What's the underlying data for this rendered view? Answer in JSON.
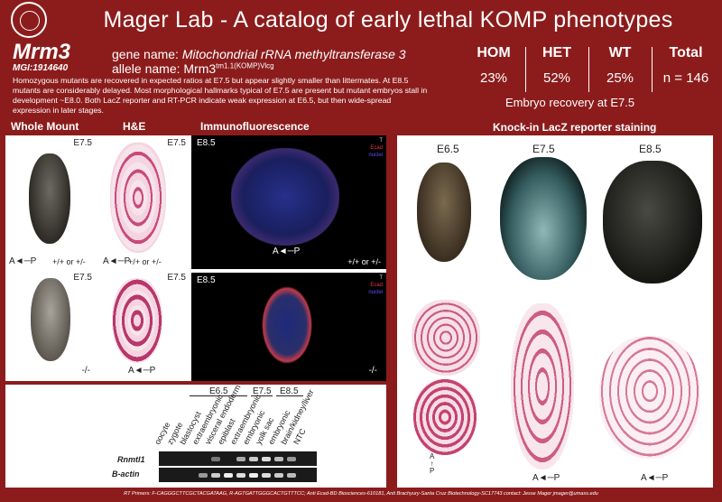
{
  "header": {
    "title": "Mager Lab - A catalog of early lethal KOMP phenotypes"
  },
  "gene": {
    "symbol": "Mrm3",
    "mgi": "MGI:1914640",
    "gene_name_label": "gene name:",
    "gene_name": "Mitochondrial rRNA methyltransferase 3",
    "allele_name_label": "allele name:",
    "allele_base": "Mrm3",
    "allele_sup": "tm1.1(KOMP)Vlcg"
  },
  "description": "Homozygous mutants are recovered in expected ratios at E7.5 but appear slightly smaller than littermates. At E8.5 mutants are considerably delayed. Most morphological hallmarks typical of E7.5 are present but mutant embryos stall in development ~E8.0. Both LacZ reporter and RT-PCR indicate weak expression at E6.5, but then wide-spread expression in later stages.",
  "stats": {
    "hom_label": "HOM",
    "hom_value": "23%",
    "het_label": "HET",
    "het_value": "52%",
    "wt_label": "WT",
    "wt_value": "25%",
    "total_label": "Total",
    "total_value": "n = 146",
    "recovery_caption": "Embryo recovery at E7.5"
  },
  "sections": {
    "whole_mount": "Whole Mount",
    "he": "H&E",
    "immuno": "Immunofluorescence",
    "lacz": "Knock-in LacZ reporter staining"
  },
  "panels": {
    "wm_top_stage": "E7.5",
    "wm_top_geno": "+/+ or +/-",
    "wm_bottom_stage": "E7.5",
    "wm_bottom_geno": "-/-",
    "he_top_stage": "E7.5",
    "he_top_geno": "+/+ or +/-",
    "he_bottom_stage": "E7.5",
    "if_top_stage": "E8.5",
    "if_top_geno": "+/+ or +/-",
    "if_bottom_stage": "E8.5",
    "if_bottom_geno": "-/-",
    "axis": "A◄─P",
    "if_legend": [
      "T",
      "Ecad",
      "nuclei"
    ],
    "lacz_stages": [
      "E6.5",
      "E7.5",
      "E8.5"
    ],
    "lacz_axis": "A◄─P",
    "lacz_vertical_axis": [
      "A",
      "P"
    ]
  },
  "gel": {
    "stage_groups": [
      "E6.5",
      "E7.5",
      "E8.5"
    ],
    "lanes": [
      "oocyte",
      "zygote",
      "blastocyst",
      "extraembryonic",
      "visceral endoderm",
      "epiblast",
      "extraembryonic",
      "embryonic",
      "yolk sac",
      "embryonic",
      "brain/kidney/liver",
      "NTC"
    ],
    "rows": [
      "Rnmtl1",
      "B-actin"
    ]
  },
  "footer": "RT Primers: F-CAGGGCTTCGCTACGATAAG, R-AGTGATTGGGCACTGTTTCC; Anti Ecad-BD Biosciences-610181, Anti Brachyury-Santa Cruz Biotechnology-SC17743 contact: Jesse Mager jmager@umass.edu"
}
